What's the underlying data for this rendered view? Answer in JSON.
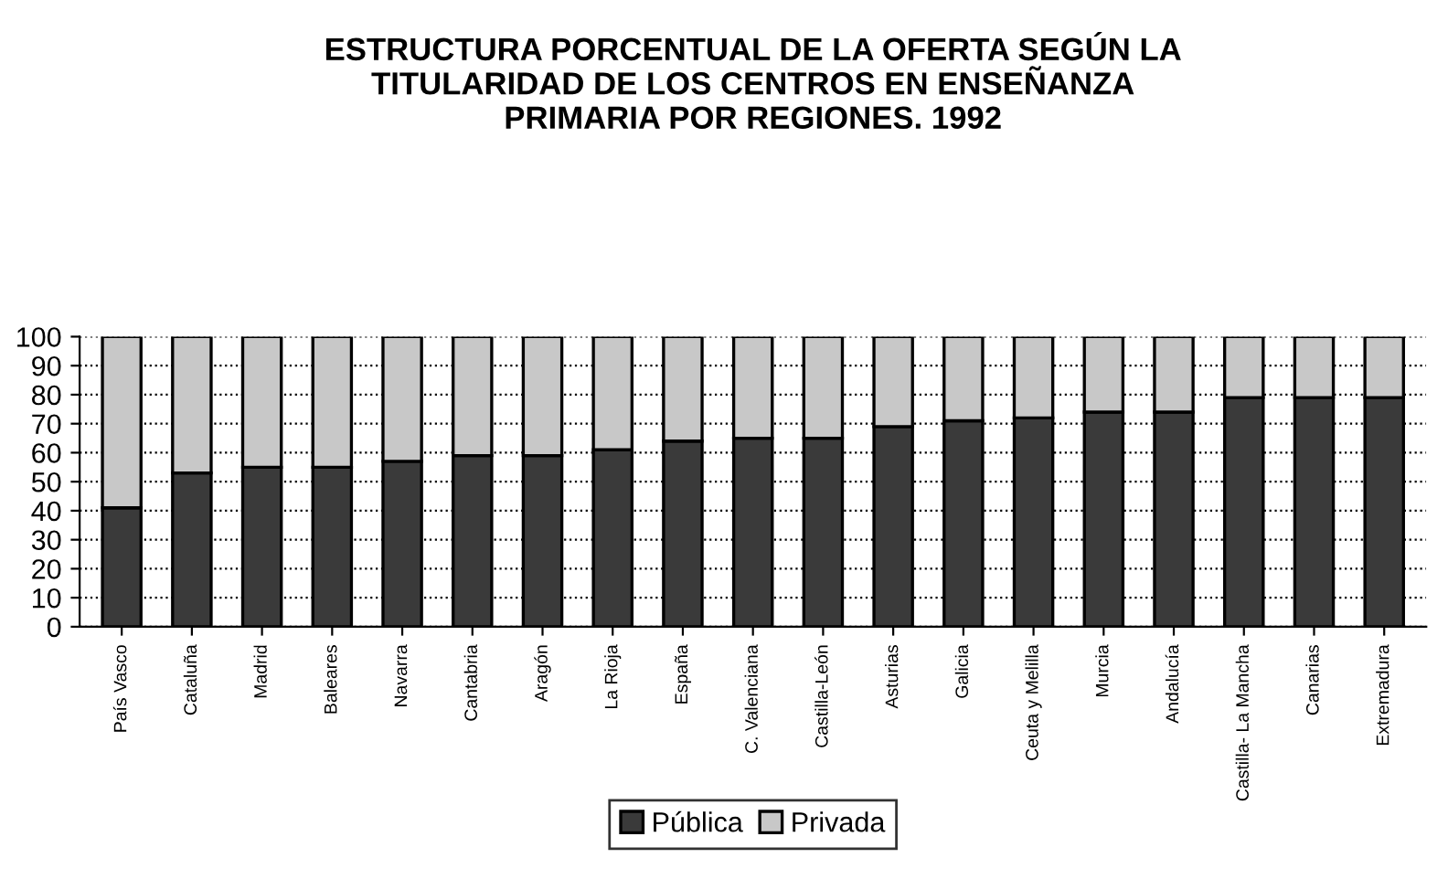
{
  "chart_data": {
    "type": "bar",
    "title": "ESTRUCTURA PORCENTUAL DE LA OFERTA SEGÚN LA\nTITULARIDAD DE LOS CENTROS EN ENSEÑANZA\nPRIMARIA POR REGIONES. 1992",
    "categories": [
      "País Vasco",
      "Cataluña",
      "Madrid",
      "Baleares",
      "Navarra",
      "Cantabria",
      "Aragón",
      "La Rioja",
      "España",
      "C. Valenciana",
      "Castilla-León",
      "Asturias",
      "Galicia",
      "Ceuta y Melilla",
      "Murcia",
      "Andalucía",
      "Castilla- La Mancha",
      "Canarias",
      "Extremadura"
    ],
    "series": [
      {
        "name": "Pública",
        "color": "#3a3a3a",
        "values": [
          41,
          53,
          55,
          55,
          57,
          59,
          59,
          61,
          64,
          65,
          65,
          69,
          71,
          72,
          74,
          74,
          79,
          79,
          79
        ]
      },
      {
        "name": "Privada",
        "color": "#c8c8c8",
        "values": [
          59,
          47,
          45,
          45,
          43,
          41,
          41,
          39,
          36,
          35,
          35,
          31,
          29,
          28,
          26,
          26,
          21,
          21,
          21
        ]
      }
    ],
    "stacked": true,
    "ylim": [
      0,
      100
    ],
    "yticks": [
      0,
      10,
      20,
      30,
      40,
      50,
      60,
      70,
      80,
      90,
      100
    ],
    "grid": "y",
    "legend": "bottom"
  }
}
